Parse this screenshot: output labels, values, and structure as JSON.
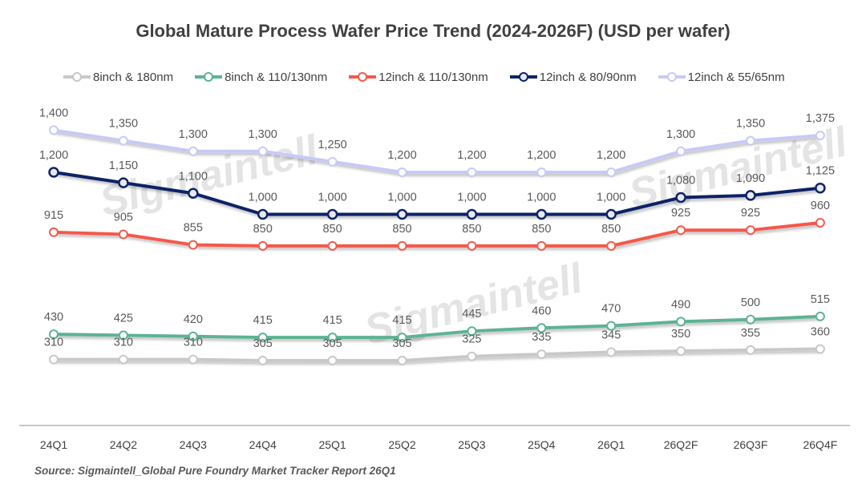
{
  "chart_data": {
    "type": "line",
    "title": "Global Mature Process Wafer Price Trend (2024-2026F) (USD per wafer)",
    "xlabel": "",
    "ylabel": "USD per wafer",
    "categories": [
      "24Q1",
      "24Q2",
      "24Q3",
      "24Q4",
      "25Q1",
      "25Q2",
      "25Q3",
      "25Q4",
      "26Q1",
      "26Q2F",
      "26Q3F",
      "26Q4F"
    ],
    "ylim": [
      0,
      1400
    ],
    "grid": false,
    "legend_position": "top",
    "series": [
      {
        "name": "8inch & 180nm",
        "color": "#c8c8c8",
        "values": [
          310,
          310,
          310,
          305,
          305,
          305,
          325,
          335,
          345,
          350,
          355,
          360
        ],
        "labels": [
          "310",
          "310",
          "310",
          "305",
          "305",
          "305",
          "325",
          "335",
          "345",
          "350",
          "355",
          "360"
        ]
      },
      {
        "name": "8inch & 110/130nm",
        "color": "#5bb392",
        "values": [
          430,
          425,
          420,
          415,
          415,
          415,
          445,
          460,
          470,
          490,
          500,
          515
        ],
        "labels": [
          "430",
          "425",
          "420",
          "415",
          "415",
          "415",
          "445",
          "460",
          "470",
          "490",
          "500",
          "515"
        ]
      },
      {
        "name": "12inch & 110/130nm",
        "color": "#f4594a",
        "values": [
          915,
          905,
          855,
          850,
          850,
          850,
          850,
          850,
          850,
          925,
          925,
          960
        ],
        "labels": [
          "915",
          "905",
          "855",
          "850",
          "850",
          "850",
          "850",
          "850",
          "850",
          "925",
          "925",
          "960"
        ]
      },
      {
        "name": "12inch & 80/90nm",
        "color": "#0e2466",
        "values": [
          1200,
          1150,
          1100,
          1000,
          1000,
          1000,
          1000,
          1000,
          1000,
          1080,
          1090,
          1125
        ],
        "labels": [
          "1,200",
          "1,150",
          "1,100",
          "1,000",
          "1,000",
          "1,000",
          "1,000",
          "1,000",
          "1,000",
          "1,080",
          "1,090",
          "1,125"
        ]
      },
      {
        "name": "12inch & 55/65nm",
        "color": "#c9c9f7",
        "values": [
          1400,
          1350,
          1300,
          1300,
          1250,
          1200,
          1200,
          1200,
          1200,
          1300,
          1350,
          1375
        ],
        "labels": [
          "1,400",
          "1,350",
          "1,300",
          "1,300",
          "1,250",
          "1,200",
          "1,200",
          "1,200",
          "1,200",
          "1,300",
          "1,350",
          "1,375"
        ]
      }
    ],
    "watermark": "Sigmaintell"
  },
  "source": "Source: Sigmaintell_Global Pure Foundry Market Tracker Report 26Q1"
}
